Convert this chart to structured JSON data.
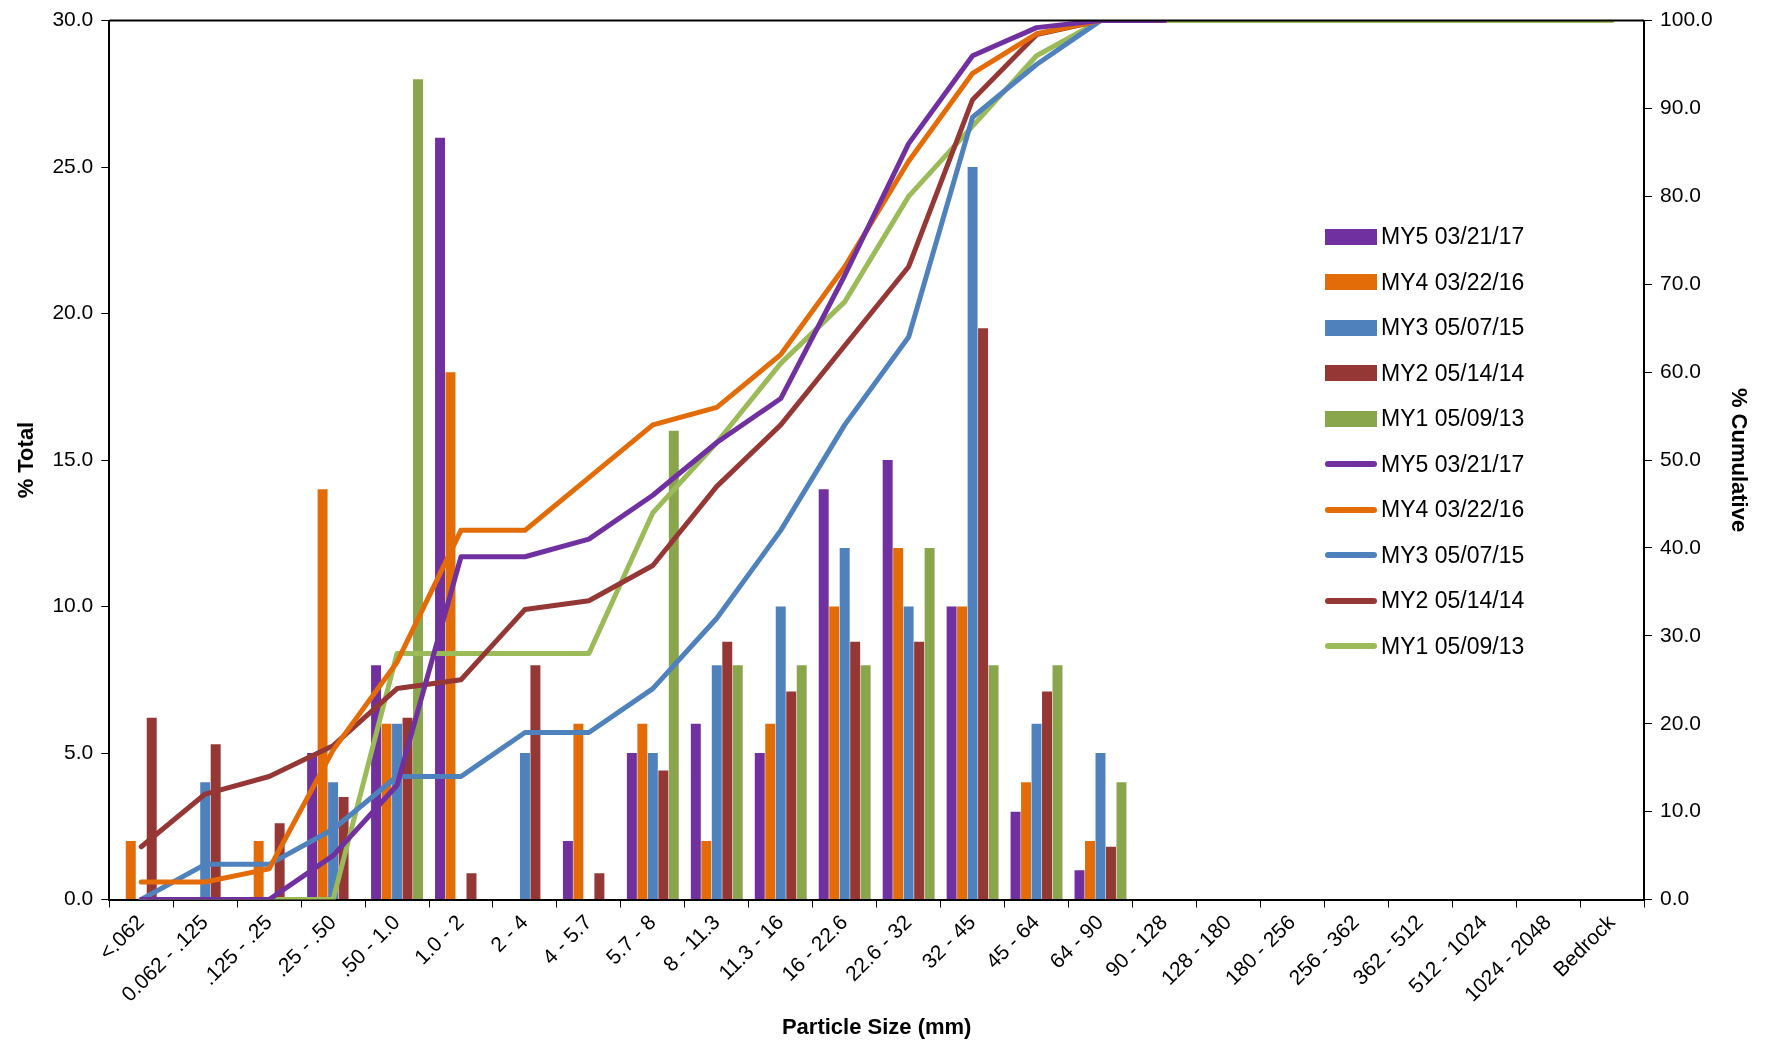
{
  "chart_data": {
    "type": "bar",
    "xlabel": "Particle Size (mm)",
    "ylabel": "% Total",
    "y2label": "% Cumulative",
    "categories": [
      "<.062",
      "0.062 - .125",
      ".125 - .25",
      ".25 - .50",
      ".50 - 1.0",
      "1.0 - 2",
      "2 - 4",
      "4 - 5.7",
      "5.7 - 8",
      "8 - 11.3",
      "11.3 - 16",
      "16 - 22.6",
      "22.6 - 32",
      "32 - 45",
      "45 - 64",
      "64 - 90",
      "90 - 128",
      "128 - 180",
      "180 - 256",
      "256 - 362",
      "362 - 512",
      "512 - 1024",
      "1024 - 2048",
      "Bedrock"
    ],
    "series": [
      {
        "name": "MY5 03/21/17",
        "color": "#7030a0",
        "values": [
          0,
          0,
          0,
          5,
          8,
          26,
          0,
          2,
          5,
          6,
          5,
          14,
          15,
          10,
          3,
          1,
          0,
          0,
          0,
          0,
          0,
          0,
          0,
          0
        ]
      },
      {
        "name": "MY4 03/22/16",
        "color": "#e36c09",
        "values": [
          2,
          0,
          2,
          14,
          6,
          18,
          0,
          6,
          6,
          2,
          6,
          10,
          12,
          10,
          4,
          2,
          0,
          0,
          0,
          0,
          0,
          0,
          0,
          0
        ]
      },
      {
        "name": "MY3 05/07/15",
        "color": "#4f81bd",
        "values": [
          0,
          4,
          0,
          4,
          6,
          0,
          5,
          0,
          5,
          8,
          10,
          12,
          10,
          25,
          6,
          5,
          0,
          0,
          0,
          0,
          0,
          0,
          0,
          0
        ]
      },
      {
        "name": "MY2 05/14/14",
        "color": "#953735",
        "values": [
          6.2,
          5.3,
          2.6,
          3.5,
          6.2,
          0.9,
          8,
          0.9,
          4.4,
          8.8,
          7.1,
          8.8,
          8.8,
          19.5,
          7.1,
          1.8,
          0,
          0,
          0,
          0,
          0,
          0,
          0,
          0
        ]
      },
      {
        "name": "MY1 05/09/13",
        "color": "#8aa64c",
        "values": [
          0,
          0,
          0,
          0,
          28,
          0,
          0,
          0,
          16,
          8,
          8,
          8,
          12,
          8,
          8,
          4,
          0,
          0,
          0,
          0,
          0,
          0,
          0,
          0
        ]
      },
      {
        "name": "MY5 03/21/17",
        "type": "line",
        "axis": "y2",
        "color": "#7030a0",
        "values": [
          0,
          0,
          0,
          5,
          13,
          39,
          39,
          41,
          46,
          52,
          57,
          71,
          86,
          96,
          99.2,
          100,
          100,
          null,
          null,
          null,
          null,
          null,
          null,
          null
        ]
      },
      {
        "name": "MY4 03/22/16",
        "type": "line",
        "axis": "y2",
        "color": "#e36c09",
        "values": [
          2,
          2,
          3.5,
          17,
          27,
          42,
          42,
          48,
          54,
          56,
          62,
          72,
          84,
          94,
          98.5,
          100,
          100,
          null,
          null,
          null,
          null,
          null,
          null,
          null
        ]
      },
      {
        "name": "MY3 05/07/15",
        "type": "line",
        "axis": "y2",
        "color": "#4f81bd",
        "values": [
          0,
          4,
          4,
          8,
          14,
          14,
          19,
          19,
          24,
          32,
          42,
          54,
          64,
          89,
          95,
          100,
          100,
          null,
          null,
          null,
          null,
          null,
          null,
          null
        ]
      },
      {
        "name": "MY2 05/14/14",
        "type": "line",
        "axis": "y2",
        "color": "#953735",
        "values": [
          6,
          12,
          14,
          17.5,
          24,
          25,
          33,
          34,
          38,
          47,
          54,
          63,
          72,
          91,
          98.4,
          100,
          100,
          null,
          null,
          null,
          null,
          null,
          null,
          null
        ]
      },
      {
        "name": "MY1 05/09/13",
        "type": "line",
        "axis": "y2",
        "color": "#9bbb59",
        "values": [
          0,
          0,
          0,
          0,
          28,
          28,
          28,
          28,
          44,
          52,
          61,
          68,
          80,
          88,
          96,
          100,
          100,
          100,
          100,
          100,
          100,
          100,
          100,
          100
        ]
      }
    ],
    "ylim": [
      0,
      30
    ],
    "yticks": [
      {
        "value": 0,
        "label": "0.0"
      },
      {
        "value": 5,
        "label": "5.0"
      },
      {
        "value": 10,
        "label": "10.0"
      },
      {
        "value": 15,
        "label": "15.0"
      },
      {
        "value": 20,
        "label": "20.0"
      },
      {
        "value": 25,
        "label": "25.0"
      },
      {
        "value": 30,
        "label": "30.0"
      }
    ],
    "y2lim": [
      0,
      100
    ],
    "y2ticks": [
      {
        "value": 0,
        "label": "0.0"
      },
      {
        "value": 10,
        "label": "10.0"
      },
      {
        "value": 20,
        "label": "20.0"
      },
      {
        "value": 30,
        "label": "30.0"
      },
      {
        "value": 40,
        "label": "40.0"
      },
      {
        "value": 50,
        "label": "50.0"
      },
      {
        "value": 60,
        "label": "60.0"
      },
      {
        "value": 70,
        "label": "70.0"
      },
      {
        "value": 80,
        "label": "80.0"
      },
      {
        "value": 90,
        "label": "90.0"
      },
      {
        "value": 100,
        "label": "100.0"
      }
    ],
    "grid": false,
    "legend": "right",
    "marker": "none",
    "line_style": "solid"
  }
}
